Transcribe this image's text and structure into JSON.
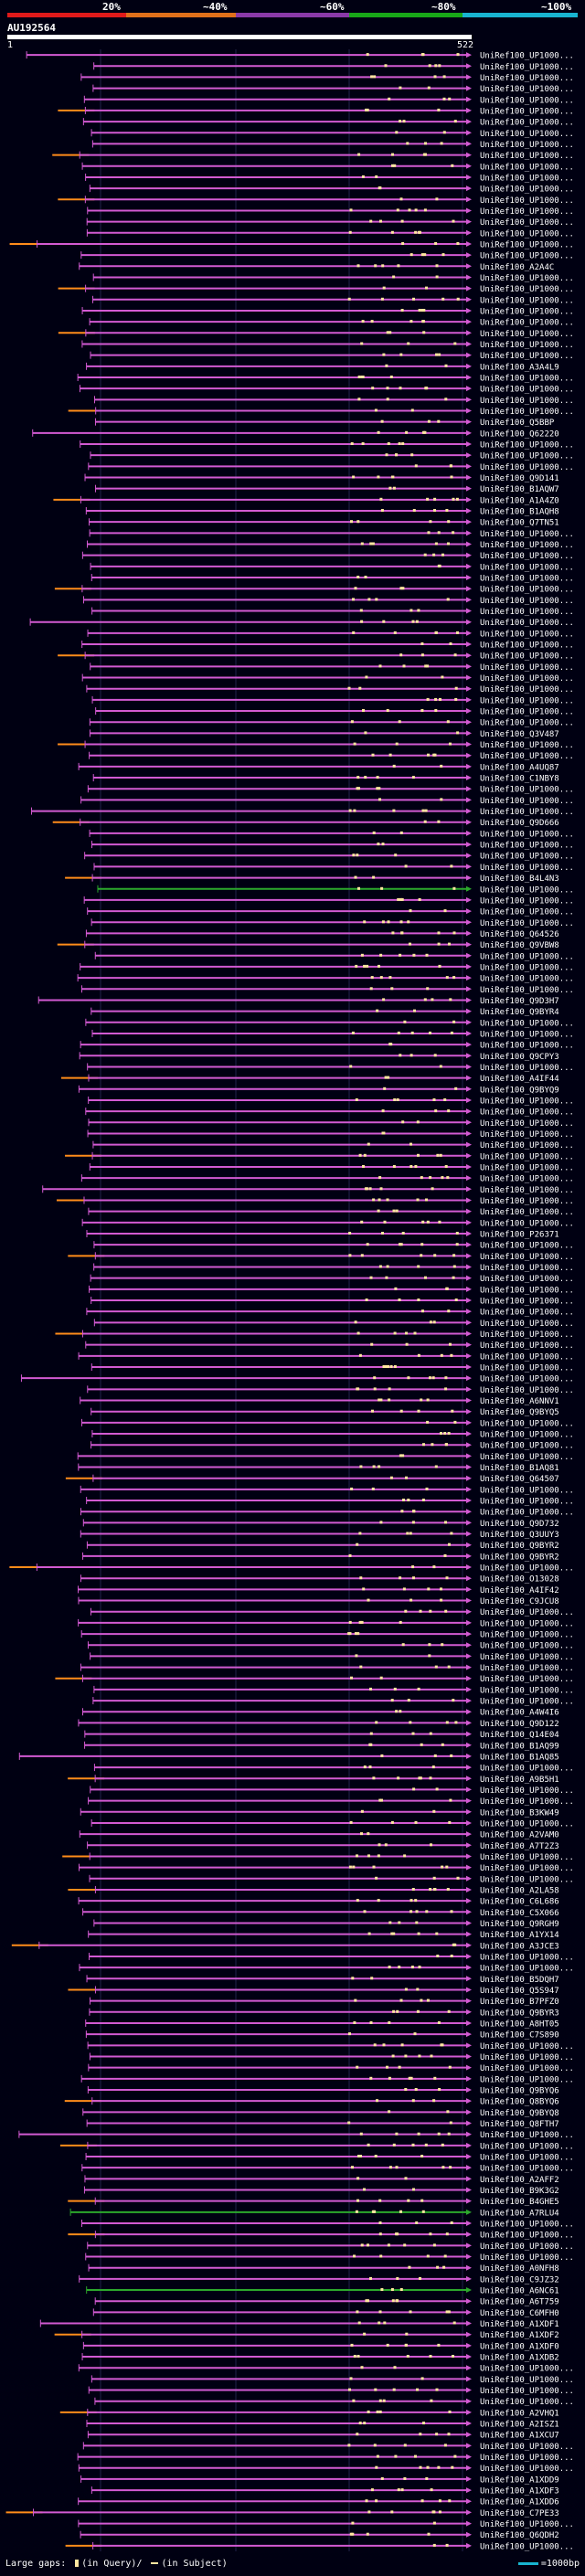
{
  "colors": {
    "bg": "#000012",
    "pink": "#d25ad2",
    "orange": "#ff8c1a",
    "green": "#2ca82c",
    "white": "#ffffff",
    "gap": "#ffe6a0",
    "band20": "#e01a1a",
    "band40": "#e0701a",
    "band60": "#8a3aa8",
    "band80": "#18a818",
    "band100": "#18b4d0"
  },
  "scale": {
    "labels": [
      "20%",
      "~40%",
      "~60%",
      "~80%",
      "~100%"
    ]
  },
  "query": {
    "name": "AU192564",
    "start": "1",
    "end": "522",
    "length": 522
  },
  "footer": {
    "large_gaps_label": "Large gaps:",
    "in_query_label": "(in Query)/",
    "in_subject_label": "(in Subject)",
    "scale_note": "=1000bp"
  },
  "chart_data": {
    "type": "alignment-overview",
    "x_label": "query position (bp)",
    "xlim": [
      1,
      522
    ],
    "row_colors": {
      "green_rows": [
        75,
        194,
        201
      ],
      "orange_rows": [
        5,
        9,
        13,
        17,
        21,
        25,
        32,
        40,
        48,
        54,
        62,
        69,
        74,
        80,
        92,
        99,
        103,
        108,
        115,
        128,
        136,
        146,
        155,
        162,
        165,
        170,
        174,
        184,
        188,
        193,
        196,
        205,
        212,
        221,
        224,
        227
      ]
    },
    "hits": [
      "UniRef100_UP1000...",
      "UniRef100_UP1000...",
      "UniRef100_UP1000...",
      "UniRef100_UP1000...",
      "UniRef100_UP1000...",
      "UniRef100_UP1000...",
      "UniRef100_UP1000...",
      "UniRef100_UP1000...",
      "UniRef100_UP1000...",
      "UniRef100_UP1000...",
      "UniRef100_UP1000...",
      "UniRef100_UP1000...",
      "UniRef100_UP1000...",
      "UniRef100_UP1000...",
      "UniRef100_UP1000...",
      "UniRef100_UP1000...",
      "UniRef100_UP1000...",
      "UniRef100_UP1000...",
      "UniRef100_UP1000...",
      "UniRef100_A2A4C",
      "UniRef100_UP1000...",
      "UniRef100_UP1000...",
      "UniRef100_UP1000...",
      "UniRef100_UP1000...",
      "UniRef100_UP1000...",
      "UniRef100_UP1000...",
      "UniRef100_UP1000...",
      "UniRef100_UP1000...",
      "UniRef100_A3A4L9",
      "UniRef100_UP1000...",
      "UniRef100_UP1000...",
      "UniRef100_UP1000...",
      "UniRef100_UP1000...",
      "UniRef100_Q5BBP",
      "UniRef100_Q62220",
      "UniRef100_UP1000...",
      "UniRef100_UP1000...",
      "UniRef100_UP1000...",
      "UniRef100_Q9D141",
      "UniRef100_B1AQW7",
      "UniRef100_A1A4Z0",
      "UniRef100_B1AQH8",
      "UniRef100_Q7TN51",
      "UniRef100_UP1000...",
      "UniRef100_UP1000...",
      "UniRef100_UP1000...",
      "UniRef100_UP1000...",
      "UniRef100_UP1000...",
      "UniRef100_UP1000...",
      "UniRef100_UP1000...",
      "UniRef100_UP1000...",
      "UniRef100_UP1000...",
      "UniRef100_UP1000...",
      "UniRef100_UP1000...",
      "UniRef100_UP1000...",
      "UniRef100_UP1000...",
      "UniRef100_UP1000...",
      "UniRef100_UP1000...",
      "UniRef100_UP1000...",
      "UniRef100_UP1000...",
      "UniRef100_UP1000...",
      "UniRef100_Q3V487",
      "UniRef100_UP1000...",
      "UniRef100_UP1000...",
      "UniRef100_A4UQ87",
      "UniRef100_C1NBY8",
      "UniRef100_UP1000...",
      "UniRef100_UP1000...",
      "UniRef100_UP1000...",
      "UniRef100_Q9D666",
      "UniRef100_UP1000...",
      "UniRef100_UP1000...",
      "UniRef100_UP1000...",
      "UniRef100_UP1000...",
      "UniRef100_B4L4N3",
      "UniRef100_UP1000...",
      "UniRef100_UP1000...",
      "UniRef100_UP1000...",
      "UniRef100_UP1000...",
      "UniRef100_Q64526",
      "UniRef100_Q9VBW8",
      "UniRef100_UP1000...",
      "UniRef100_UP1000...",
      "UniRef100_UP1000...",
      "UniRef100_UP1000...",
      "UniRef100_Q9D3H7",
      "UniRef100_Q9BYR4",
      "UniRef100_UP1000...",
      "UniRef100_UP1000...",
      "UniRef100_UP1000...",
      "UniRef100_Q9CPY3",
      "UniRef100_UP1000...",
      "UniRef100_A4IF44",
      "UniRef100_Q9BYQ9",
      "UniRef100_UP1000...",
      "UniRef100_UP1000...",
      "UniRef100_UP1000...",
      "UniRef100_UP1000...",
      "UniRef100_UP1000...",
      "UniRef100_UP1000...",
      "UniRef100_UP1000...",
      "UniRef100_UP1000...",
      "UniRef100_UP1000...",
      "UniRef100_UP1000...",
      "UniRef100_UP1000...",
      "UniRef100_UP1000...",
      "UniRef100_P26371",
      "UniRef100_UP1000...",
      "UniRef100_UP1000...",
      "UniRef100_UP1000...",
      "UniRef100_UP1000...",
      "UniRef100_UP1000...",
      "UniRef100_UP1000...",
      "UniRef100_UP1000...",
      "UniRef100_UP1000...",
      "UniRef100_UP1000...",
      "UniRef100_UP1000...",
      "UniRef100_UP1000...",
      "UniRef100_UP1000...",
      "UniRef100_UP1000...",
      "UniRef100_UP1000...",
      "UniRef100_A6NNV1",
      "UniRef100_Q9BYQ5",
      "UniRef100_UP1000...",
      "UniRef100_UP1000...",
      "UniRef100_UP1000...",
      "UniRef100_UP1000...",
      "UniRef100_B1AQ81",
      "UniRef100_Q64507",
      "UniRef100_UP1000...",
      "UniRef100_UP1000...",
      "UniRef100_UP1000...",
      "UniRef100_Q9D732",
      "UniRef100_Q3UUY3",
      "UniRef100_Q9BYR2",
      "UniRef100_Q9BYR2",
      "UniRef100_UP1000...",
      "UniRef100_O13028",
      "UniRef100_A4IF42",
      "UniRef100_C9JCU8",
      "UniRef100_UP1000...",
      "UniRef100_UP1000...",
      "UniRef100_UP1000...",
      "UniRef100_UP1000...",
      "UniRef100_UP1000...",
      "UniRef100_UP1000...",
      "UniRef100_UP1000...",
      "UniRef100_UP1000...",
      "UniRef100_UP1000...",
      "UniRef100_A4W4I6",
      "UniRef100_Q9D122",
      "UniRef100_Q14E04",
      "UniRef100_B1AQ99",
      "UniRef100_B1AQ85",
      "UniRef100_UP1000...",
      "UniRef100_A9B5H1",
      "UniRef100_UP1000...",
      "UniRef100_UP1000...",
      "UniRef100_B3KW49",
      "UniRef100_UP1000...",
      "UniRef100_A2VAM0",
      "UniRef100_A7T2Z3",
      "UniRef100_UP1000...",
      "UniRef100_UP1000...",
      "UniRef100_UP1000...",
      "UniRef100_A2LA58",
      "UniRef100_C6L686",
      "UniRef100_C5X066",
      "UniRef100_Q9RGH9",
      "UniRef100_A1YX14",
      "UniRef100_A3JCE3",
      "UniRef100_UP1000...",
      "UniRef100_UP1000...",
      "UniRef100_B5DQH7",
      "UniRef100_Q5S947",
      "UniRef100_B7PFZ0",
      "UniRef100_Q9BYR3",
      "UniRef100_A8HT05",
      "UniRef100_C7S890",
      "UniRef100_UP1000...",
      "UniRef100_UP1000...",
      "UniRef100_UP1000...",
      "UniRef100_UP1000...",
      "UniRef100_Q9BYQ6",
      "UniRef100_Q8BYQ6",
      "UniRef100_Q9BYQ8",
      "UniRef100_Q8FTH7",
      "UniRef100_UP1000...",
      "UniRef100_UP1000...",
      "UniRef100_UP1000...",
      "UniRef100_UP1000...",
      "UniRef100_A2AFF2",
      "UniRef100_B9K3G2",
      "UniRef100_B4GHE5",
      "UniRef100_A7RLU4",
      "UniRef100_UP1000...",
      "UniRef100_UP1000...",
      "UniRef100_UP1000...",
      "UniRef100_UP1000...",
      "UniRef100_A0NFH8",
      "UniRef100_C9JZ32",
      "UniRef100_A6NC61",
      "UniRef100_A6T759",
      "UniRef100_C6MFH0",
      "UniRef100_A1XDF1",
      "UniRef100_A1XDF2",
      "UniRef100_A1XDF0",
      "UniRef100_A1XDB2",
      "UniRef100_UP1000...",
      "UniRef100_UP1000...",
      "UniRef100_UP1000...",
      "UniRef100_UP1000...",
      "UniRef100_A2VHQ1",
      "UniRef100_A2ISZ1",
      "UniRef100_A1XCU7",
      "UniRef100_UP1000...",
      "UniRef100_UP1000...",
      "UniRef100_UP1000...",
      "UniRef100_A1XDD9",
      "UniRef100_A1XDF3",
      "UniRef100_A1XDD6",
      "UniRef100_C7PE33",
      "UniRef100_UP1000...",
      "UniRef100_Q6QDH2",
      "UniRef100_UP1000..."
    ]
  }
}
